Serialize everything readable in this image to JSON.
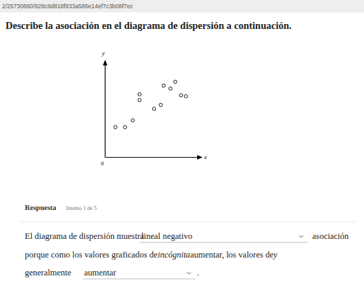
{
  "page": {
    "url": "2/25730660/928c8d818f833a586e14ef7c3b08f7ec",
    "question": "Describe la asociación en el diagrama de dispersión a continuación.",
    "answer": {
      "heading": "Respuesta",
      "attempt": "Intento 1 de 5",
      "line1_start": "El diagrama de dispersión muestra",
      "dropdown1": "lineal negativo",
      "line1_end": "asociación",
      "line2_parts": [
        "porque como los valores graficados de",
        "incógnita",
        "aumentar, los valores de",
        "y"
      ],
      "line3_start": "generalmente",
      "dropdown2": "aumentar",
      "line3_end": "."
    }
  },
  "chart_data": {
    "type": "scatter",
    "x_label": "x",
    "y_label": "y",
    "x": [
      1.1,
      2.1,
      2.9,
      3.6,
      3.6,
      5.1,
      5.8,
      6.1,
      6.8,
      7.3,
      7.9,
      8.4
    ],
    "values": [
      3.1,
      3.1,
      3.8,
      6.5,
      5.9,
      5.0,
      5.4,
      7.4,
      7.1,
      7.8,
      6.4,
      6.3
    ],
    "xlim": [
      0,
      10
    ],
    "ylim": [
      0,
      10
    ],
    "xticks": [
      0
    ],
    "yticks": [],
    "tick_labels": "x",
    "marker": "open-circle",
    "color": "#000000",
    "grid": false
  }
}
